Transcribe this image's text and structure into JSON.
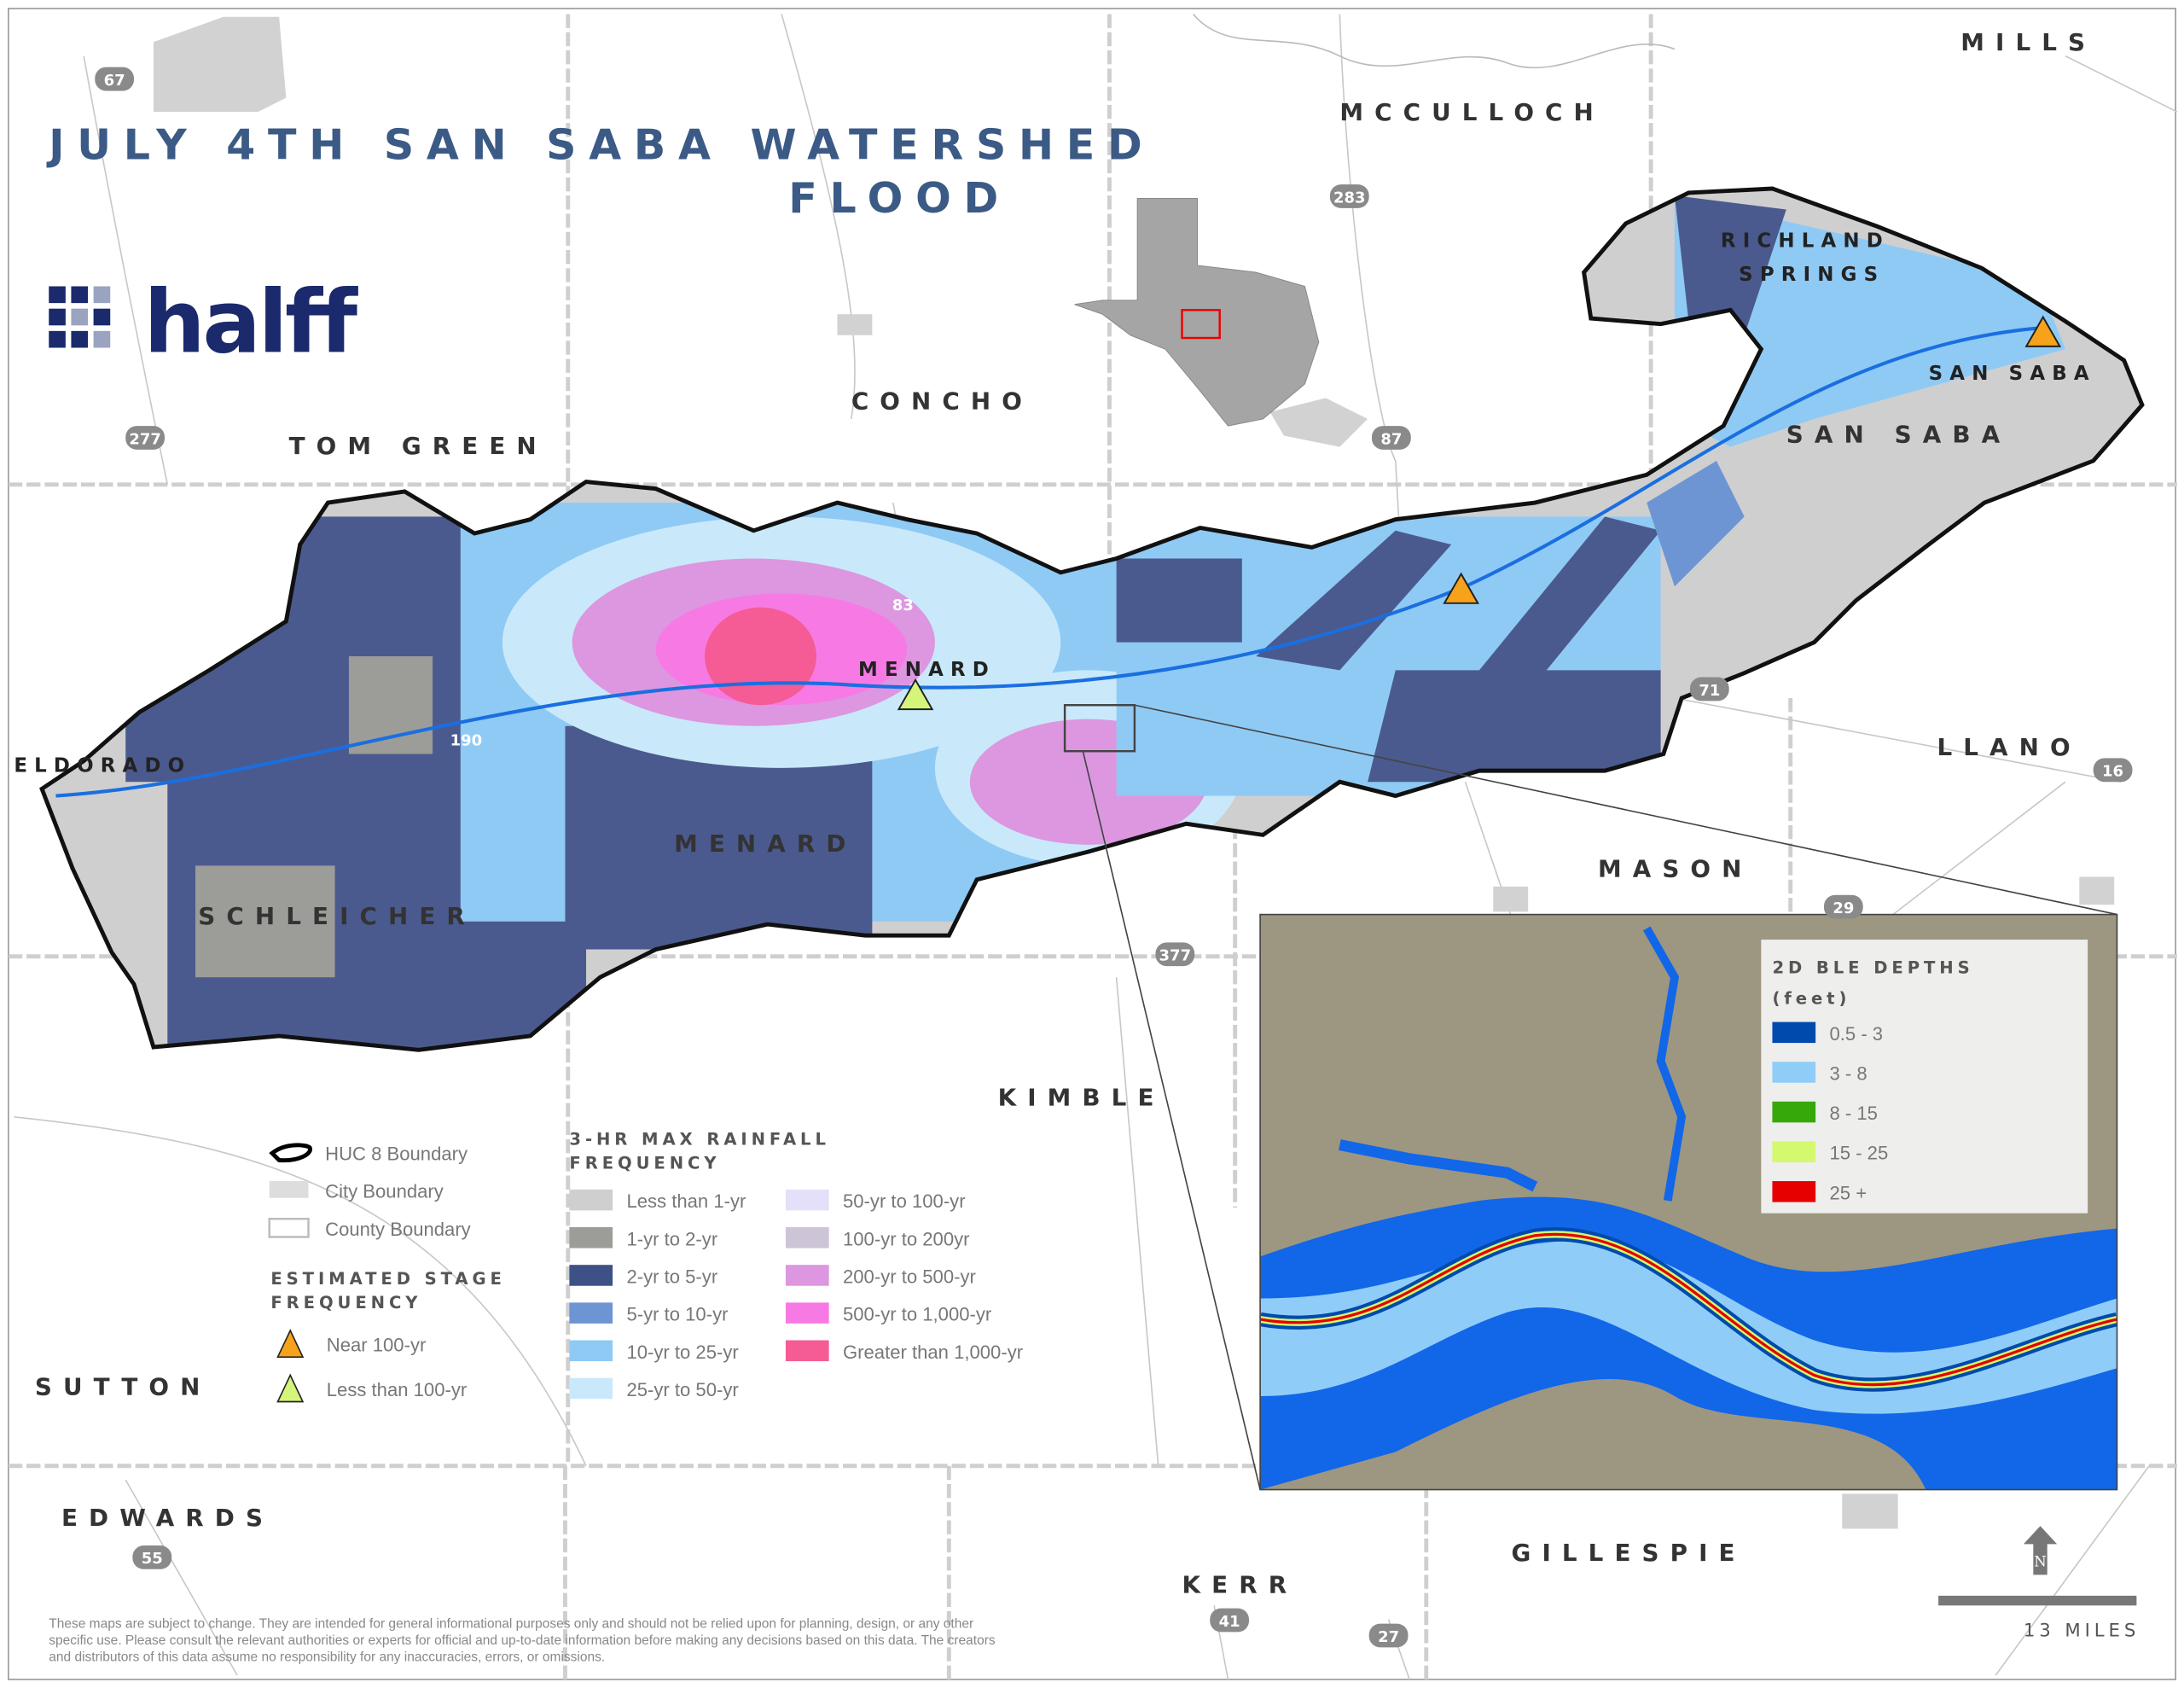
{
  "title": {
    "line1": "JULY 4TH SAN SABA WATERSHED",
    "line2": "FLOOD"
  },
  "logo": {
    "text": "halff",
    "color": "#1a2a6c"
  },
  "counties": {
    "mills": "MILLS",
    "mcculloch": "MCCULLOCH",
    "concho": "CONCHO",
    "tom_green": "TOM GREEN",
    "san_saba": "SAN SABA",
    "menard": "MENARD",
    "schleicher": "SCHLEICHER",
    "llano": "LLANO",
    "mason": "MASON",
    "kimble": "KIMBLE",
    "sutton": "SUTTON",
    "edwards": "EDWARDS",
    "gillespie": "GILLESPIE",
    "kerr": "KERR"
  },
  "cities": {
    "richland_springs_1": "RICHLAND",
    "richland_springs_2": "SPRINGS",
    "san_saba": "SAN SABA",
    "menard": "MENARD",
    "eldorado": "ELDORADO"
  },
  "highways": [
    "67",
    "283",
    "277",
    "87",
    "83",
    "190",
    "71",
    "16",
    "29",
    "377",
    "55",
    "41",
    "27"
  ],
  "gauges": [
    {
      "location": "San Saba",
      "stage": "Near 100-yr"
    },
    {
      "location": "Menard-Mason",
      "stage": "Near 100-yr"
    },
    {
      "location": "Menard",
      "stage": "Less than 100-yr"
    }
  ],
  "legend": {
    "base": [
      {
        "label": "HUC 8 Boundary"
      },
      {
        "label": "City Boundary"
      },
      {
        "label": "County Boundary"
      }
    ],
    "stage_title_1": "ESTIMATED STAGE",
    "stage_title_2": "FREQUENCY",
    "stage": [
      {
        "label": "Near 100-yr",
        "color": "#f7a21b"
      },
      {
        "label": "Less than 100-yr",
        "color": "#d4f57a"
      }
    ],
    "rain_title_1": "3-HR MAX RAINFALL",
    "rain_title_2": "FREQUENCY",
    "rain": [
      {
        "label": "Less than 1-yr",
        "color": "#cfcfcf"
      },
      {
        "label": "1-yr to 2-yr",
        "color": "#9c9c98"
      },
      {
        "label": "2-yr to 5-yr",
        "color": "#3d5186"
      },
      {
        "label": "5-yr to 10-yr",
        "color": "#6e95d3"
      },
      {
        "label": "10-yr to 25-yr",
        "color": "#8fcaf5"
      },
      {
        "label": "25-yr to 50-yr",
        "color": "#c9e9fb"
      },
      {
        "label": "50-yr to 100-yr",
        "color": "#e4e0f9"
      },
      {
        "label": "100-yr to 200yr",
        "color": "#cdc4d8"
      },
      {
        "label": "200-yr to 500-yr",
        "color": "#dc97e0"
      },
      {
        "label": "500-yr to 1,000-yr",
        "color": "#f77ae4"
      },
      {
        "label": "Greater than 1,000-yr",
        "color": "#f55b95"
      }
    ]
  },
  "inset_legend": {
    "title_1": "2D BLE DEPTHS",
    "title_2": "(feet)",
    "items": [
      {
        "label": "0.5 - 3",
        "color": "#004aad"
      },
      {
        "label": "3 - 8",
        "color": "#8fcdf8"
      },
      {
        "label": "8 - 15",
        "color": "#37a80a"
      },
      {
        "label": "15 - 25",
        "color": "#d4f86e"
      },
      {
        "label": "25 +",
        "color": "#e60000"
      }
    ]
  },
  "north_arrow": "N",
  "scale_bar": "13 MILES",
  "disclaimer": [
    "These maps are subject to change. They are intended for general informational purposes only and should not be relied upon for planning, design, or any other",
    "specific use. Please consult the relevant authorities or experts for official and up-to-date information before making any decisions based on this data. The creators",
    "and distributors of this data assume no responsibility for any inaccuracies, errors, or omissions."
  ]
}
